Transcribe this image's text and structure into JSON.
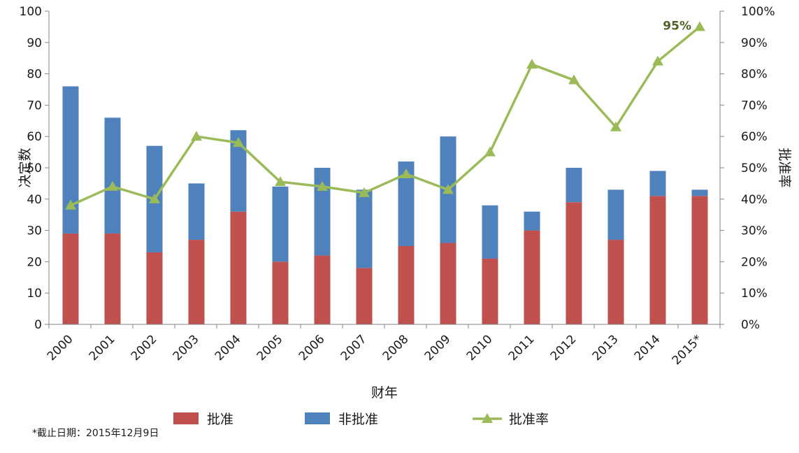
{
  "chart_data": {
    "type": "bar",
    "stacked": true,
    "categories": [
      "2000",
      "2001",
      "2002",
      "2003",
      "2004",
      "2005",
      "2006",
      "2007",
      "2008",
      "2009",
      "2010",
      "2011",
      "2012",
      "2013",
      "2014",
      "2015*"
    ],
    "series": [
      {
        "name": "批准",
        "kind": "bar",
        "axis": "left",
        "color": "#c0504d",
        "values": [
          29,
          29,
          23,
          27,
          36,
          20,
          22,
          18,
          25,
          26,
          21,
          30,
          39,
          27,
          41,
          41
        ]
      },
      {
        "name": "非批准",
        "kind": "bar",
        "axis": "left",
        "color": "#4f81bd",
        "values": [
          47,
          37,
          34,
          18,
          26,
          24,
          28,
          25,
          27,
          34,
          17,
          6,
          11,
          16,
          8,
          2
        ]
      },
      {
        "name": "批准率",
        "kind": "line",
        "marker": "triangle",
        "axis": "right",
        "color": "#9bbb59",
        "values": [
          38,
          44,
          40,
          60,
          58,
          45.5,
          44,
          42,
          48,
          43,
          55,
          83,
          78,
          63,
          84,
          95
        ]
      }
    ],
    "xlabel": "财年",
    "ylabel": "决定数",
    "y2label": "批准率",
    "ylim": [
      0,
      100
    ],
    "yticks": [
      "0",
      "10",
      "20",
      "30",
      "40",
      "50",
      "60",
      "70",
      "80",
      "90",
      "100"
    ],
    "y2lim": [
      0,
      100
    ],
    "y2ticks": [
      "0%",
      "10%",
      "20%",
      "30%",
      "40%",
      "50%",
      "60%",
      "70%",
      "80%",
      "90%",
      "100%"
    ],
    "annotation": {
      "text": "95%",
      "category": "2015*"
    },
    "legend": {
      "placement": "bottom",
      "labels": [
        "批准",
        "非批准",
        "批准率"
      ]
    },
    "grid": false
  },
  "footnote": "*截止日期：2015年12月9日"
}
